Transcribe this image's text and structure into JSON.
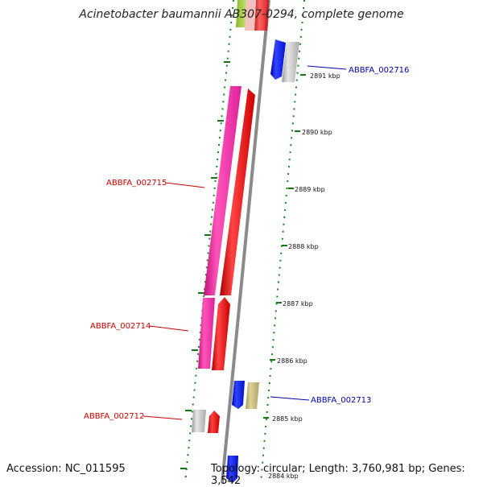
{
  "title": "Acinetobacter baumannii AB307-0294, complete genome",
  "footer": {
    "accession": "Accession: NC_011595",
    "info": "Topology: circular; Length: 3,760,981 bp; Genes: 3,542"
  },
  "colors": {
    "forward_gene": "#ee0000",
    "reverse_gene": "#ee2299",
    "forward_other": "#1122ee",
    "gray_gene": "#bbbbbb",
    "khaki_gene": "#c8bd7a",
    "backbone": "#777777",
    "forward_label": "#0000aa",
    "reverse_label": "#cc0000",
    "tick_color": "#117711"
  },
  "ticks": [
    "2891 kbp",
    "2890 kbp",
    "2889 kbp",
    "2888 kbp",
    "2887 kbp",
    "2886 kbp",
    "2885 kbp",
    "2884 kbp"
  ],
  "gene_labels": [
    {
      "name": "ABBFA_002716",
      "strand": "forward"
    },
    {
      "name": "ABBFA_002715",
      "strand": "reverse"
    },
    {
      "name": "ABBFA_002714",
      "strand": "reverse"
    },
    {
      "name": "ABBFA_002713",
      "strand": "forward"
    },
    {
      "name": "ABBFA_002712",
      "strand": "reverse"
    }
  ]
}
